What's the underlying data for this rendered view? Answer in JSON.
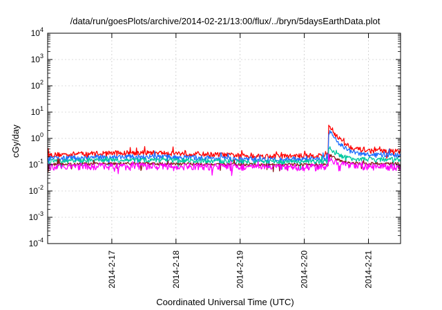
{
  "chart_data": {
    "type": "line",
    "title": "/data/run/goesPlots/archive/2014-02-21/13:00/flux/../bryn/5daysEarthData.plot",
    "xlabel": "Coordinated Universal Time (UTC)",
    "ylabel": "cGy/day",
    "yscale": "log",
    "ylim": [
      0.0001,
      10000
    ],
    "xlim": [
      0,
      5.5
    ],
    "x_unit": "days since 2014-02-16 00:00 UTC",
    "y_ticks": [
      {
        "base": "10",
        "exp": "-4",
        "value": 0.0001
      },
      {
        "base": "10",
        "exp": "-3",
        "value": 0.001
      },
      {
        "base": "10",
        "exp": "-2",
        "value": 0.01
      },
      {
        "base": "10",
        "exp": "-1",
        "value": 0.1
      },
      {
        "base": "10",
        "exp": "0",
        "value": 1
      },
      {
        "base": "10",
        "exp": "1",
        "value": 10
      },
      {
        "base": "10",
        "exp": "2",
        "value": 100
      },
      {
        "base": "10",
        "exp": "3",
        "value": 1000
      },
      {
        "base": "10",
        "exp": "4",
        "value": 10000
      }
    ],
    "x_ticks": [
      {
        "label": "2014-2-17",
        "value": 1
      },
      {
        "label": "2014-2-18",
        "value": 2
      },
      {
        "label": "2014-2-19",
        "value": 3
      },
      {
        "label": "2014-2-20",
        "value": 4
      },
      {
        "label": "2014-2-21",
        "value": 5
      }
    ],
    "grid": true,
    "event": {
      "x": 4.38,
      "description": "spike near 2014-02-20 ~09:00 UTC"
    },
    "series": [
      {
        "name": "",
        "color": "#ff0000",
        "baseline": 0.25,
        "trend": 0.15,
        "noise": 0.22,
        "peak": 3.0,
        "post": 0.33
      },
      {
        "name": "",
        "color": "#1e6fff",
        "baseline": 0.18,
        "trend": 0.12,
        "noise": 0.22,
        "peak": 2.0,
        "post": 0.23
      },
      {
        "name": "",
        "color": "#00c8a0",
        "baseline": 0.14,
        "trend": 0.08,
        "noise": 0.2,
        "peak": 0.45,
        "post": 0.16
      },
      {
        "name": "",
        "color": "#8b1a1a",
        "baseline": 0.105,
        "trend": 0.05,
        "noise": 0.12,
        "peak": 0.26,
        "post": 0.11
      },
      {
        "name": "",
        "color": "#ff00ff",
        "baseline": 0.085,
        "trend": 0.05,
        "noise": 0.3,
        "peak": 0.2,
        "post": 0.085
      }
    ]
  }
}
